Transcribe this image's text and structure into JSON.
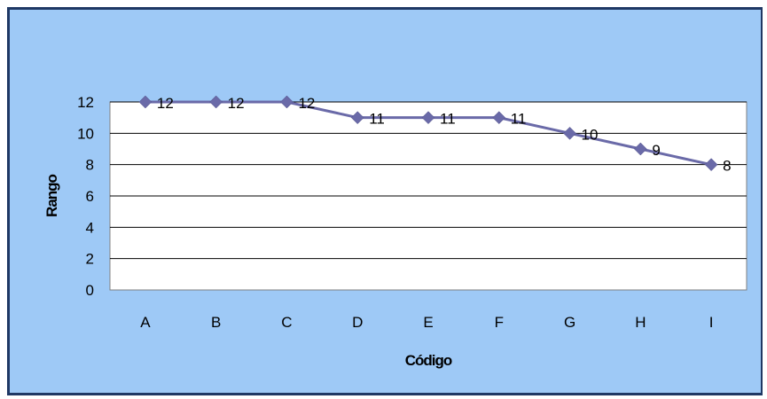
{
  "chart_data": {
    "type": "line",
    "title": "",
    "xlabel": "Código",
    "ylabel": "Rango",
    "categories": [
      "A",
      "B",
      "C",
      "D",
      "E",
      "F",
      "G",
      "H",
      "I"
    ],
    "series": [
      {
        "values": [
          12,
          12,
          12,
          11,
          11,
          11,
          10,
          9,
          8
        ]
      }
    ],
    "ylim": [
      0,
      12
    ],
    "yticks": [
      0,
      2,
      4,
      6,
      8,
      10,
      12
    ],
    "grid": true,
    "legend": "none",
    "data_labels": true,
    "colors": {
      "background": "#9ec9f6",
      "plot_area": "#ffffff",
      "border": "#1f3864",
      "line": "#6a6aa8",
      "marker": "#6a6aa8",
      "gridline": "#000000"
    }
  }
}
